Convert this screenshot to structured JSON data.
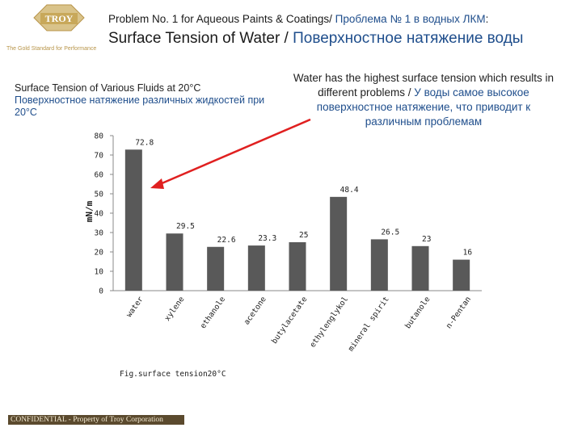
{
  "logo": {
    "name": "TROY",
    "tagline": "The Gold Standard for Performance"
  },
  "header": {
    "line1_en": "Problem No. 1 for Aqueous Paints & Coatings/",
    "line1_ru": "Проблема № 1 в водных ЛКМ",
    "line1_suffix": ":",
    "line2_en": "Surface Tension of Water /",
    "line2_ru": "Поверхностное натяжение воды"
  },
  "callout": {
    "en": "Water has the highest surface tension which results in different problems /",
    "ru": "У воды самое высокое поверхностное натяжение, что приводит к различным проблемам"
  },
  "footer": {
    "text": "CONFIDENTIAL - Property of Troy Corporation"
  },
  "colors": {
    "bar": "#595959",
    "arrow": "#e02020",
    "russian_text": "#1f4e8c",
    "logo_gold": "#c8a85a",
    "footer_bg": "#5b4a2e"
  },
  "chart_data": {
    "type": "bar",
    "title_en": "Surface Tension of Various Fluids at 20°C",
    "title_ru": "Поверхностное натяжение различных жидкостей при 20°C",
    "categories": [
      "water",
      "xylene",
      "ethanole",
      "acetone",
      "butylacetate",
      "ethylenglykol",
      "mineral spirit",
      "butanole",
      "n-Pentan"
    ],
    "values": [
      72.8,
      29.5,
      22.6,
      23.3,
      25,
      48.4,
      26.5,
      23,
      16
    ],
    "ylabel": "mN/m",
    "xlabel": "Fig.surface tension20°C",
    "ylim": [
      0,
      80
    ],
    "yticks": [
      0,
      10,
      20,
      30,
      40,
      50,
      60,
      70,
      80
    ],
    "grid": false,
    "legend": "none"
  }
}
